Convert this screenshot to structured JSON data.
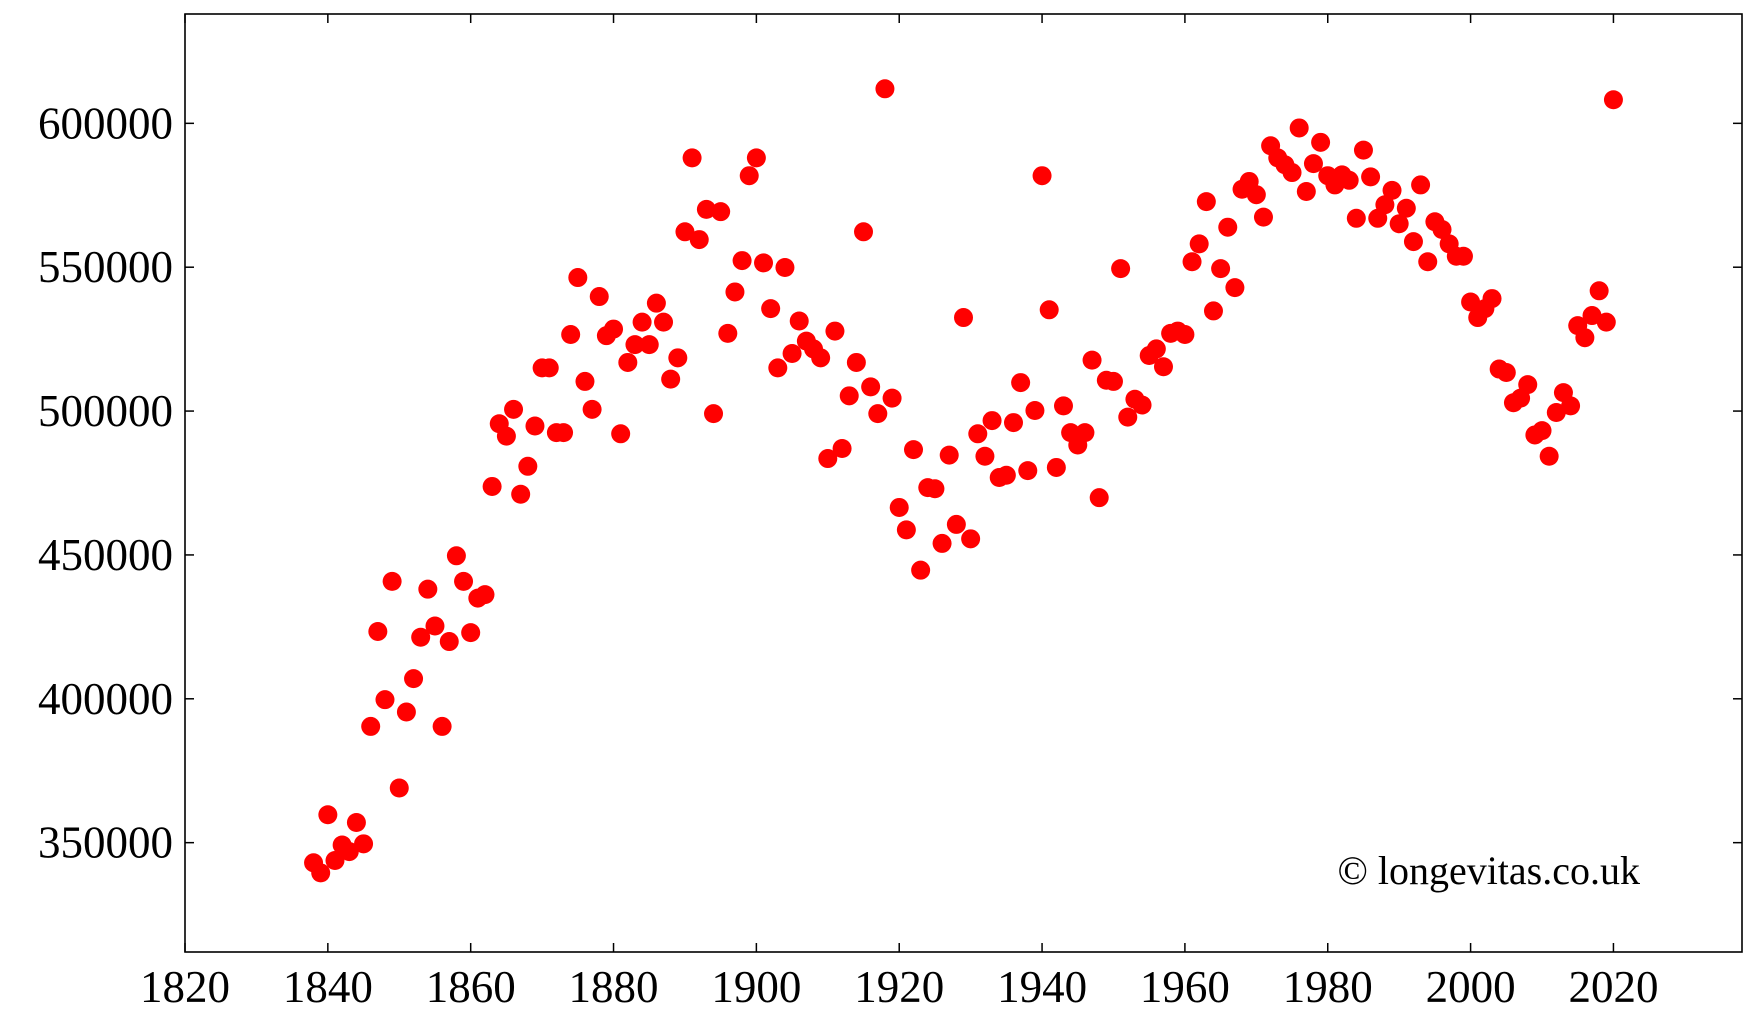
{
  "chart_data": {
    "type": "scatter",
    "annotation": "© longevitas.co.uk",
    "color": "#ff0000",
    "xlim": [
      1820,
      2038
    ],
    "ylim": [
      312000,
      638000
    ],
    "xticks": [
      1820,
      1840,
      1860,
      1880,
      1900,
      1920,
      1940,
      1960,
      1980,
      2000,
      2020
    ],
    "yticks": [
      350000,
      400000,
      450000,
      500000,
      550000,
      600000
    ],
    "x": [
      1838,
      1839,
      1840,
      1841,
      1842,
      1843,
      1844,
      1845,
      1846,
      1847,
      1848,
      1849,
      1850,
      1851,
      1852,
      1853,
      1854,
      1855,
      1856,
      1857,
      1858,
      1859,
      1860,
      1861,
      1862,
      1863,
      1864,
      1865,
      1866,
      1867,
      1868,
      1869,
      1870,
      1871,
      1872,
      1873,
      1874,
      1875,
      1876,
      1877,
      1878,
      1879,
      1880,
      1881,
      1882,
      1883,
      1884,
      1885,
      1886,
      1887,
      1888,
      1889,
      1890,
      1891,
      1892,
      1893,
      1894,
      1895,
      1896,
      1897,
      1898,
      1899,
      1900,
      1901,
      1902,
      1903,
      1904,
      1905,
      1906,
      1907,
      1908,
      1909,
      1910,
      1911,
      1912,
      1913,
      1914,
      1915,
      1916,
      1917,
      1918,
      1919,
      1920,
      1921,
      1922,
      1923,
      1924,
      1925,
      1926,
      1927,
      1928,
      1929,
      1930,
      1931,
      1932,
      1933,
      1934,
      1935,
      1936,
      1937,
      1938,
      1939,
      1940,
      1941,
      1942,
      1943,
      1944,
      1945,
      1946,
      1947,
      1948,
      1949,
      1950,
      1951,
      1952,
      1953,
      1954,
      1955,
      1956,
      1957,
      1958,
      1959,
      1960,
      1961,
      1962,
      1963,
      1964,
      1965,
      1966,
      1967,
      1968,
      1969,
      1970,
      1971,
      1972,
      1973,
      1974,
      1975,
      1976,
      1977,
      1978,
      1979,
      1980,
      1981,
      1982,
      1983,
      1984,
      1985,
      1986,
      1987,
      1988,
      1989,
      1990,
      1991,
      1992,
      1993,
      1994,
      1995,
      1996,
      1997,
      1998,
      1999,
      2000,
      2001,
      2002,
      2003,
      2004,
      2005,
      2006,
      2007,
      2008,
      2009,
      2010,
      2011,
      2012,
      2013,
      2014,
      2015,
      2016,
      2017,
      2018,
      2019,
      2020
    ],
    "values": [
      343000,
      339500,
      359700,
      343800,
      349200,
      346900,
      357000,
      349600,
      390400,
      423400,
      399700,
      440800,
      369000,
      395400,
      407000,
      421400,
      438100,
      425300,
      390400,
      419900,
      449700,
      440800,
      423000,
      435000,
      436200,
      473800,
      495600,
      491300,
      500600,
      471100,
      480800,
      494800,
      515000,
      515000,
      492500,
      492500,
      526600,
      546400,
      510300,
      500600,
      539800,
      526200,
      528500,
      492100,
      516900,
      523100,
      530900,
      523100,
      537500,
      530900,
      511100,
      518500,
      562300,
      588000,
      559600,
      570100,
      499100,
      569300,
      527000,
      541400,
      552300,
      581800,
      588000,
      551500,
      535600,
      515000,
      549900,
      520000,
      531300,
      524300,
      521600,
      518500,
      483500,
      527800,
      487000,
      505300,
      516900,
      562300,
      508400,
      499100,
      612000,
      504500,
      466500,
      458700,
      486600,
      444700,
      473400,
      473000,
      454000,
      484700,
      460600,
      532500,
      455600,
      492100,
      484300,
      496700,
      476900,
      477700,
      496000,
      509900,
      479300,
      500200,
      581800,
      535200,
      480400,
      501800,
      492500,
      488200,
      492500,
      517700,
      469900,
      510700,
      510300,
      549500,
      497900,
      504100,
      502100,
      519300,
      521600,
      515400,
      527000,
      527800,
      526600,
      551900,
      558100,
      572800,
      534800,
      549500,
      563900,
      542900,
      577100,
      579800,
      575200,
      567400,
      592200,
      588000,
      585600,
      582900,
      598400,
      576300,
      586000,
      593400,
      581800,
      578600,
      582100,
      580200,
      567000,
      590700,
      581400,
      567000,
      571700,
      576700,
      565100,
      570500,
      558900,
      578600,
      551900,
      565800,
      563100,
      558100,
      553800,
      553800,
      537900,
      532500,
      535600,
      539100,
      514600,
      513400,
      502900,
      504500,
      509200,
      491700,
      493200,
      484300,
      499500,
      506400,
      501800,
      529700,
      525500,
      533200,
      541800,
      530900,
      608200
    ]
  }
}
